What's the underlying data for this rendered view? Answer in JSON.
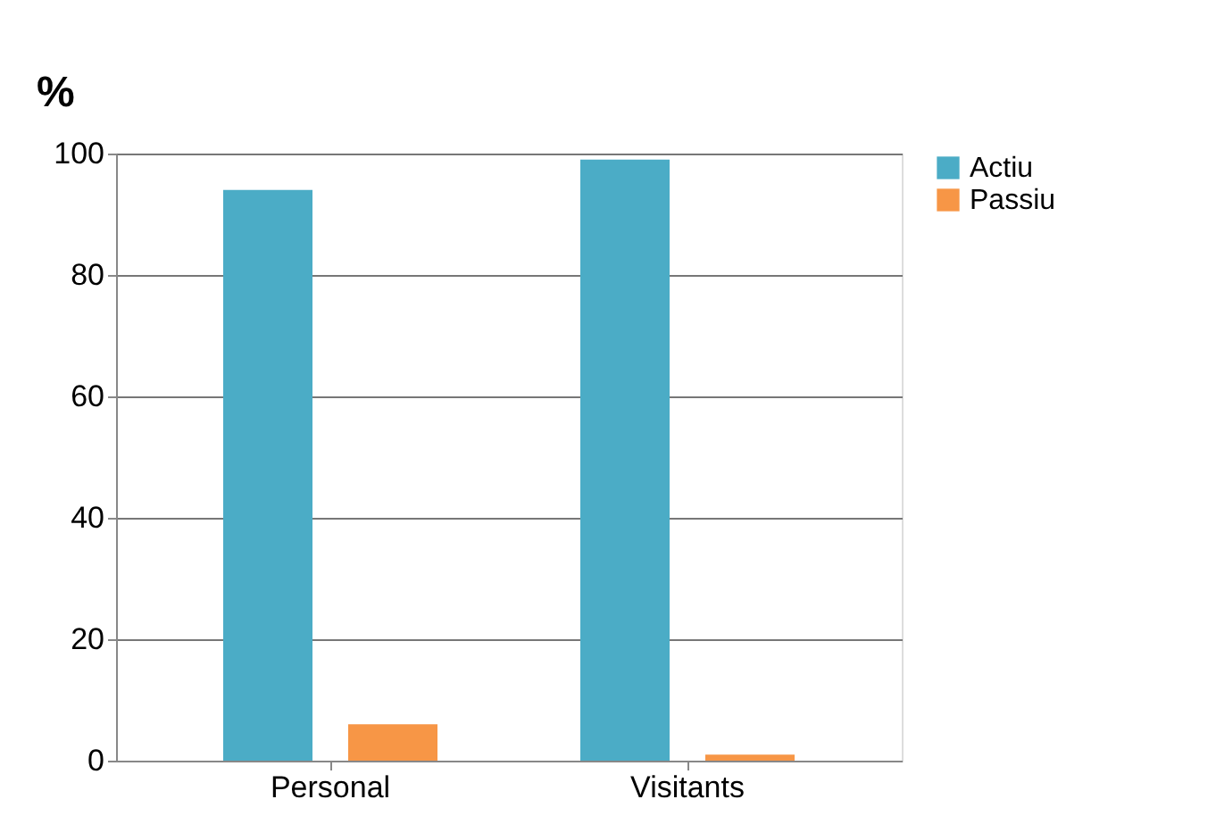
{
  "chart_data": {
    "type": "bar",
    "ylabel": "%",
    "categories": [
      "Personal",
      "Visitants"
    ],
    "series": [
      {
        "name": "Actiu",
        "color": "#4bacc6",
        "values": [
          94,
          99
        ]
      },
      {
        "name": "Passiu",
        "color": "#f79646",
        "values": [
          6,
          1
        ]
      }
    ],
    "ylim": [
      0,
      100
    ],
    "yticks": [
      0,
      20,
      40,
      60,
      80,
      100
    ],
    "grid": "y",
    "legend": "right"
  }
}
